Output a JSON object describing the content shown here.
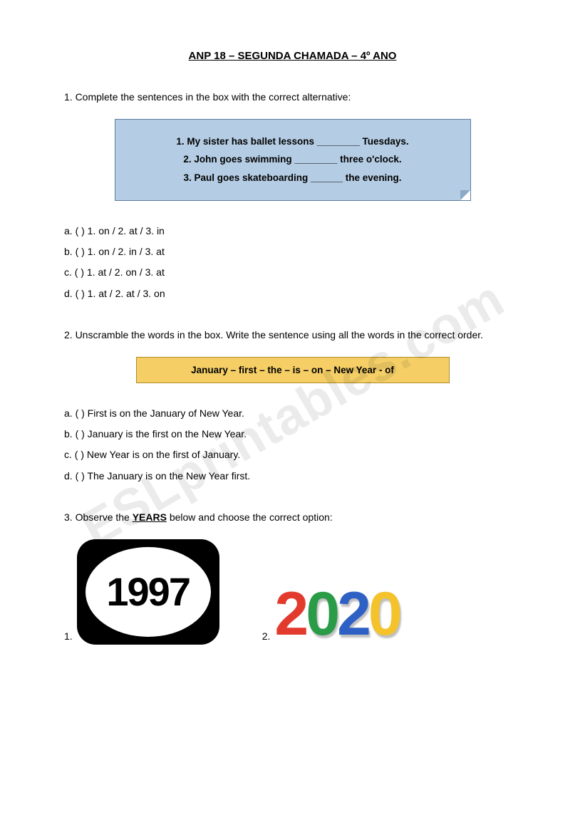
{
  "watermark": "ESLprintables.com",
  "title": "ANP 18 – SEGUNDA CHAMADA – 4º ANO",
  "q1": {
    "prompt": "1. Complete the sentences in the box with the correct alternative:",
    "box_lines": [
      "1. My sister has ballet lessons ________ Tuesdays.",
      "2. John goes swimming ________ three o'clock.",
      "3. Paul goes skateboarding ______ the evening."
    ],
    "options": [
      "a. (      ) 1. on / 2. at / 3. in",
      "b. (      ) 1. on / 2. in / 3. at",
      "c. (      ) 1. at / 2. on / 3. at",
      "d. (      ) 1. at / 2. at / 3. on"
    ]
  },
  "q2": {
    "prompt": "2. Unscramble the words in the box. Write the sentence using all the words in the correct order.",
    "box_text": "January – first – the – is – on – New Year - of",
    "options": [
      "a. (      )  First is on the January of New Year.",
      "b. (      )  January is the first on the New Year.",
      "c. (      )  New Year is on the first of January.",
      "d. (      ) The January is on the New Year first."
    ]
  },
  "q3": {
    "prompt_pre": "3. Observe the ",
    "prompt_bold": "YEARS",
    "prompt_post": " below and choose the correct option:",
    "year1_label": "1.",
    "year1_value": "1997",
    "year2_label": "2.",
    "year2_digits": [
      "2",
      "0",
      "2",
      "0"
    ],
    "digit_colors": [
      "#e23b2e",
      "#2a9b47",
      "#2f61c4",
      "#f4c22b"
    ]
  },
  "styles": {
    "page_bg": "#ffffff",
    "text_color": "#000000",
    "box_blue_bg": "#b5cde4",
    "box_blue_border": "#5b7ca0",
    "box_yellow_bg": "#f5cf66",
    "box_yellow_border": "#b08a2a",
    "watermark_color": "rgba(0,0,0,0.08)",
    "badge_bg": "#000000",
    "badge_inner_bg": "#ffffff"
  }
}
